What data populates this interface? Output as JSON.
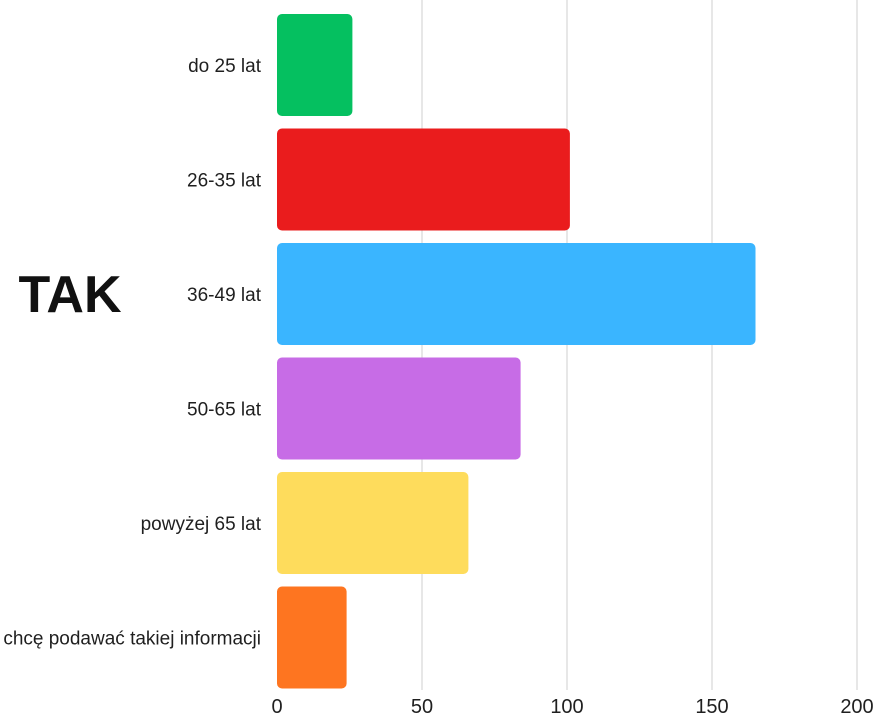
{
  "chart_data": {
    "type": "bar",
    "orientation": "horizontal",
    "group_label": "TAK",
    "categories": [
      "do 25 lat",
      "26-35 lat",
      "36-49 lat",
      "50-65 lat",
      "powyżej 65 lat",
      "nie chcę podawać takiej informacji"
    ],
    "values": [
      26,
      101,
      165,
      84,
      66,
      24
    ],
    "colors": [
      "#05c060",
      "#ea1c1d",
      "#3ab5ff",
      "#c76ce6",
      "#fedc5c",
      "#fe7520"
    ],
    "xlim": [
      0,
      200
    ],
    "xticks": [
      0,
      50,
      100,
      150,
      200
    ],
    "grid": true,
    "legend": "none"
  }
}
